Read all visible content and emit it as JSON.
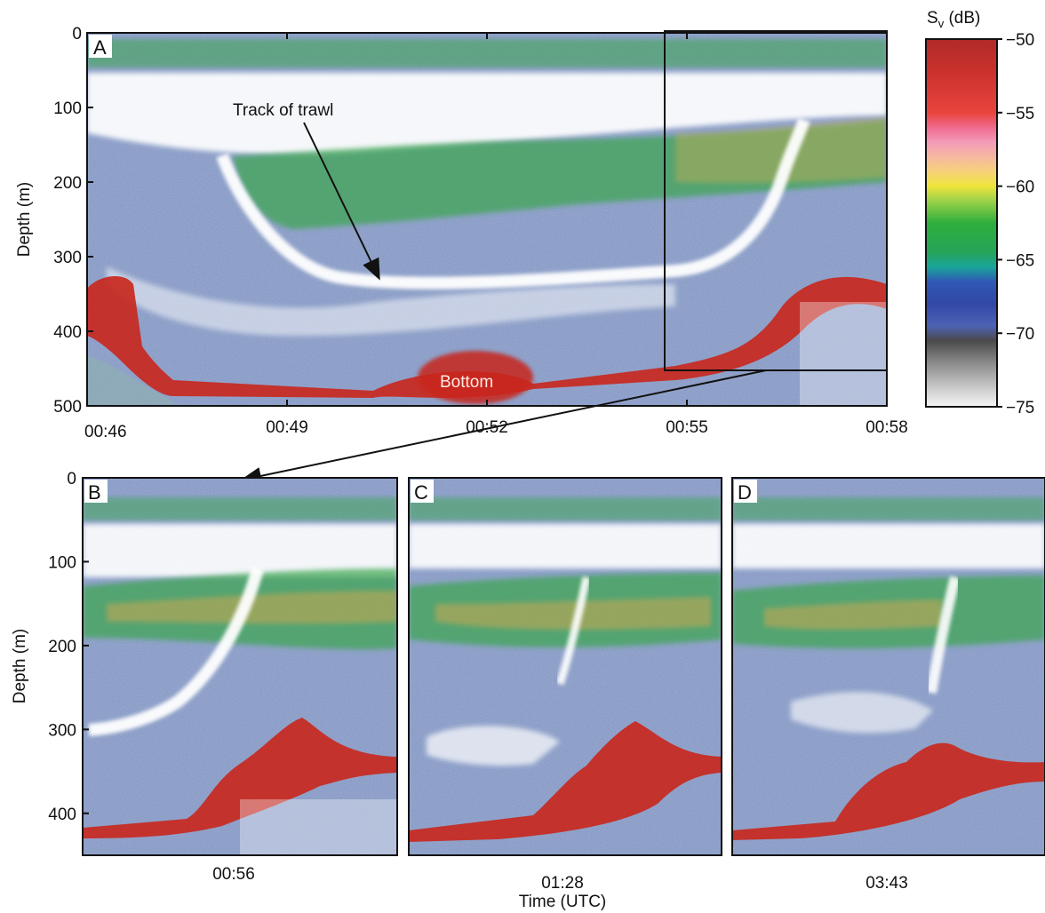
{
  "chart_data": [
    {
      "panel": "A",
      "type": "heatmap",
      "ylabel": "Depth (m)",
      "ylim": [
        0,
        500
      ],
      "y_ticks": [
        0,
        100,
        200,
        300,
        400,
        500
      ],
      "x_ticks": [
        "00:46",
        "00:49",
        "00:52",
        "00:55",
        "00:58"
      ],
      "annotations": [
        "Track of trawl",
        "Bottom"
      ],
      "zoom_box_times": [
        "00:54.8",
        "00:58"
      ],
      "zoom_box_depth": [
        0,
        455
      ]
    },
    {
      "panel": "B",
      "type": "heatmap",
      "ylabel": "Depth (m)",
      "ylim": [
        0,
        450
      ],
      "y_ticks": [
        0,
        100,
        200,
        300,
        400
      ],
      "x_ticks": [
        "00:56"
      ]
    },
    {
      "panel": "C",
      "type": "heatmap",
      "ylim": [
        0,
        450
      ],
      "x_ticks": [
        "01:28"
      ]
    },
    {
      "panel": "D",
      "type": "heatmap",
      "ylim": [
        0,
        450
      ],
      "x_ticks": [
        "03:43"
      ]
    }
  ],
  "shared": {
    "xlabel": "Time (UTC)"
  },
  "colorbar": {
    "label": "S",
    "label_sub": "v",
    "label_unit": " (dB)",
    "range": [
      -75,
      -50
    ],
    "ticks": [
      "−50",
      "−55",
      "−60",
      "−65",
      "−70",
      "−75"
    ],
    "stops": [
      {
        "v": -50,
        "c": "#b02a2a"
      },
      {
        "v": -52,
        "c": "#c8302c"
      },
      {
        "v": -55,
        "c": "#e8443c"
      },
      {
        "v": -56,
        "c": "#ef6a8c"
      },
      {
        "v": -57,
        "c": "#f49ab8"
      },
      {
        "v": -58,
        "c": "#f6b8a0"
      },
      {
        "v": -59,
        "c": "#f7d27a"
      },
      {
        "v": -60,
        "c": "#efe43a"
      },
      {
        "v": -61,
        "c": "#9cd24a"
      },
      {
        "v": -62.5,
        "c": "#2fae3c"
      },
      {
        "v": -64.5,
        "c": "#25a45a"
      },
      {
        "v": -65.5,
        "c": "#1aa59a"
      },
      {
        "v": -66.5,
        "c": "#2f58b4"
      },
      {
        "v": -68,
        "c": "#3248a6"
      },
      {
        "v": -69.5,
        "c": "#4e62b4"
      },
      {
        "v": -70.5,
        "c": "#4a4a4a"
      },
      {
        "v": -72,
        "c": "#8a8a8a"
      },
      {
        "v": -74,
        "c": "#d4d4d4"
      },
      {
        "v": -75,
        "c": "#f5f5f5"
      }
    ]
  },
  "colors": {
    "bottom": "#c8281e",
    "scatter_layer": "#3fae4a",
    "background_noise": "#6e86b4"
  }
}
